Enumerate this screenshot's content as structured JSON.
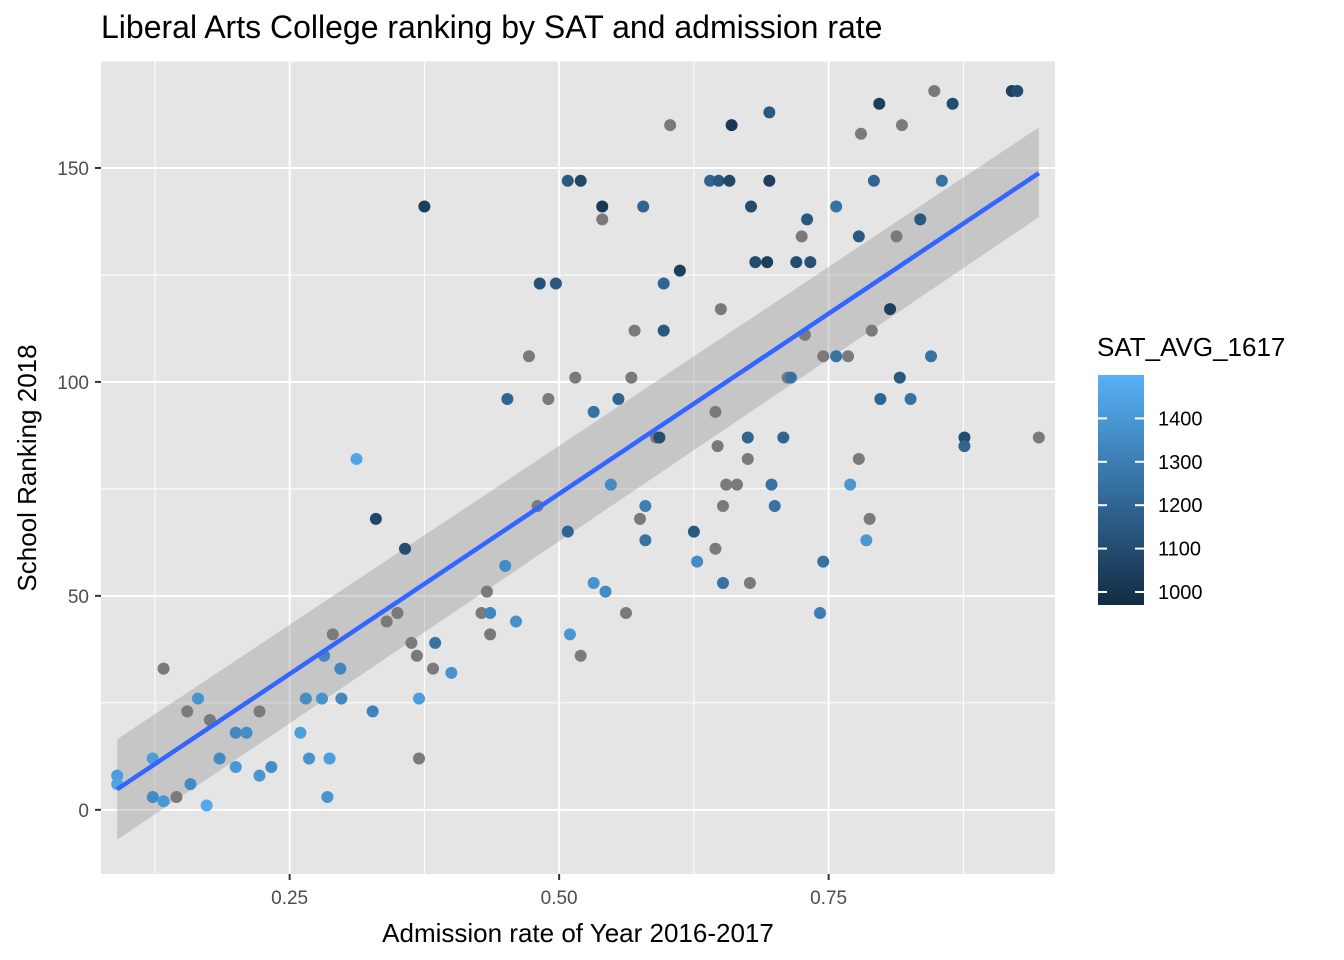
{
  "chart_data": {
    "type": "scatter",
    "title": "Liberal Arts College ranking by SAT and admission rate",
    "xlabel": "Admission rate of Year 2016-2017",
    "ylabel": "School Ranking 2018",
    "xlim": [
      0.075,
      0.96
    ],
    "ylim": [
      -15,
      175
    ],
    "x_ticks": [
      0.25,
      0.5,
      0.75
    ],
    "x_tick_labels": [
      "0.25",
      "0.50",
      "0.75"
    ],
    "y_ticks": [
      0,
      50,
      100,
      150
    ],
    "y_tick_labels": [
      "0",
      "50",
      "100",
      "150"
    ],
    "grid": true,
    "panel_background": "#e5e5e5",
    "grid_color": "#ffffff",
    "na_color": "#7a7a7a",
    "legend": {
      "title": "SAT_AVG_1617",
      "position": "right",
      "ticks": [
        1400,
        1300,
        1200,
        1100,
        1000
      ],
      "tick_labels": [
        "1400",
        "1300",
        "1200",
        "1100",
        "1000"
      ],
      "min": 970,
      "max": 1500,
      "color_low": "#132b43",
      "color_high": "#56b1f7"
    },
    "regression": {
      "method": "lm",
      "line_color": "#3366ff",
      "band_color": "#999999",
      "x_range": [
        0.09,
        0.945
      ],
      "fit": [
        4.8,
        148.8
      ],
      "ci_low": [
        -7,
        138.5
      ],
      "ci_high": [
        16.5,
        159.5
      ]
    },
    "points": [
      {
        "x": 0.09,
        "y": 8,
        "sat": 1420
      },
      {
        "x": 0.09,
        "y": 6,
        "sat": 1450
      },
      {
        "x": 0.123,
        "y": 12,
        "sat": 1420
      },
      {
        "x": 0.123,
        "y": 3,
        "sat": 1350
      },
      {
        "x": 0.133,
        "y": 2,
        "sat": 1400
      },
      {
        "x": 0.133,
        "y": 33,
        "sat": null
      },
      {
        "x": 0.145,
        "y": 3,
        "sat": null
      },
      {
        "x": 0.155,
        "y": 23,
        "sat": null
      },
      {
        "x": 0.158,
        "y": 6,
        "sat": 1350
      },
      {
        "x": 0.165,
        "y": 26,
        "sat": 1380
      },
      {
        "x": 0.173,
        "y": 1,
        "sat": 1470
      },
      {
        "x": 0.176,
        "y": 21,
        "sat": null
      },
      {
        "x": 0.185,
        "y": 12,
        "sat": 1350
      },
      {
        "x": 0.2,
        "y": 18,
        "sat": 1340
      },
      {
        "x": 0.2,
        "y": 10,
        "sat": 1400
      },
      {
        "x": 0.21,
        "y": 18,
        "sat": 1360
      },
      {
        "x": 0.222,
        "y": 23,
        "sat": null
      },
      {
        "x": 0.222,
        "y": 8,
        "sat": 1390
      },
      {
        "x": 0.233,
        "y": 10,
        "sat": 1360
      },
      {
        "x": 0.26,
        "y": 18,
        "sat": 1420
      },
      {
        "x": 0.265,
        "y": 26,
        "sat": 1360
      },
      {
        "x": 0.268,
        "y": 12,
        "sat": 1380
      },
      {
        "x": 0.28,
        "y": 26,
        "sat": 1380
      },
      {
        "x": 0.282,
        "y": 36,
        "sat": 1330
      },
      {
        "x": 0.285,
        "y": 3,
        "sat": 1390
      },
      {
        "x": 0.287,
        "y": 12,
        "sat": 1420
      },
      {
        "x": 0.29,
        "y": 41,
        "sat": null
      },
      {
        "x": 0.297,
        "y": 33,
        "sat": 1330
      },
      {
        "x": 0.298,
        "y": 26,
        "sat": 1340
      },
      {
        "x": 0.312,
        "y": 82,
        "sat": 1450
      },
      {
        "x": 0.327,
        "y": 23,
        "sat": 1320
      },
      {
        "x": 0.33,
        "y": 68,
        "sat": 1080
      },
      {
        "x": 0.34,
        "y": 44,
        "sat": null
      },
      {
        "x": 0.35,
        "y": 46,
        "sat": null
      },
      {
        "x": 0.357,
        "y": 61,
        "sat": 1100
      },
      {
        "x": 0.363,
        "y": 39,
        "sat": null
      },
      {
        "x": 0.368,
        "y": 36,
        "sat": null
      },
      {
        "x": 0.37,
        "y": 12,
        "sat": null
      },
      {
        "x": 0.37,
        "y": 26,
        "sat": 1420
      },
      {
        "x": 0.375,
        "y": 141,
        "sat": 1050
      },
      {
        "x": 0.383,
        "y": 33,
        "sat": null
      },
      {
        "x": 0.385,
        "y": 39,
        "sat": 1250
      },
      {
        "x": 0.4,
        "y": 32,
        "sat": 1380
      },
      {
        "x": 0.428,
        "y": 46,
        "sat": null
      },
      {
        "x": 0.433,
        "y": 51,
        "sat": null
      },
      {
        "x": 0.436,
        "y": 46,
        "sat": 1330
      },
      {
        "x": 0.436,
        "y": 41,
        "sat": null
      },
      {
        "x": 0.45,
        "y": 57,
        "sat": 1350
      },
      {
        "x": 0.452,
        "y": 96,
        "sat": 1200
      },
      {
        "x": 0.46,
        "y": 44,
        "sat": 1370
      },
      {
        "x": 0.472,
        "y": 106,
        "sat": null
      },
      {
        "x": 0.48,
        "y": 71,
        "sat": null
      },
      {
        "x": 0.482,
        "y": 123,
        "sat": 1120
      },
      {
        "x": 0.49,
        "y": 96,
        "sat": null
      },
      {
        "x": 0.497,
        "y": 123,
        "sat": 1150
      },
      {
        "x": 0.508,
        "y": 147,
        "sat": 1150
      },
      {
        "x": 0.508,
        "y": 65,
        "sat": 1200
      },
      {
        "x": 0.51,
        "y": 41,
        "sat": 1400
      },
      {
        "x": 0.515,
        "y": 101,
        "sat": null
      },
      {
        "x": 0.52,
        "y": 147,
        "sat": 1080
      },
      {
        "x": 0.52,
        "y": 36,
        "sat": null
      },
      {
        "x": 0.532,
        "y": 93,
        "sat": 1250
      },
      {
        "x": 0.532,
        "y": 53,
        "sat": 1380
      },
      {
        "x": 0.54,
        "y": 141,
        "sat": 1020
      },
      {
        "x": 0.54,
        "y": 138,
        "sat": null
      },
      {
        "x": 0.543,
        "y": 51,
        "sat": 1350
      },
      {
        "x": 0.548,
        "y": 76,
        "sat": 1350
      },
      {
        "x": 0.555,
        "y": 96,
        "sat": 1200
      },
      {
        "x": 0.562,
        "y": 46,
        "sat": null
      },
      {
        "x": 0.567,
        "y": 101,
        "sat": null
      },
      {
        "x": 0.57,
        "y": 112,
        "sat": null
      },
      {
        "x": 0.575,
        "y": 68,
        "sat": null
      },
      {
        "x": 0.578,
        "y": 141,
        "sat": 1200
      },
      {
        "x": 0.58,
        "y": 71,
        "sat": 1300
      },
      {
        "x": 0.58,
        "y": 63,
        "sat": 1250
      },
      {
        "x": 0.59,
        "y": 87,
        "sat": null
      },
      {
        "x": 0.593,
        "y": 87,
        "sat": 1100
      },
      {
        "x": 0.597,
        "y": 123,
        "sat": 1200
      },
      {
        "x": 0.597,
        "y": 112,
        "sat": 1150
      },
      {
        "x": 0.603,
        "y": 160,
        "sat": null
      },
      {
        "x": 0.612,
        "y": 126,
        "sat": 1050
      },
      {
        "x": 0.625,
        "y": 65,
        "sat": 1150
      },
      {
        "x": 0.628,
        "y": 58,
        "sat": 1350
      },
      {
        "x": 0.64,
        "y": 147,
        "sat": 1200
      },
      {
        "x": 0.645,
        "y": 61,
        "sat": null
      },
      {
        "x": 0.645,
        "y": 93,
        "sat": null
      },
      {
        "x": 0.647,
        "y": 85,
        "sat": null
      },
      {
        "x": 0.648,
        "y": 147,
        "sat": 1150
      },
      {
        "x": 0.65,
        "y": 117,
        "sat": null
      },
      {
        "x": 0.652,
        "y": 71,
        "sat": null
      },
      {
        "x": 0.652,
        "y": 53,
        "sat": 1250
      },
      {
        "x": 0.655,
        "y": 76,
        "sat": null
      },
      {
        "x": 0.658,
        "y": 147,
        "sat": 1080
      },
      {
        "x": 0.66,
        "y": 160,
        "sat": 1020
      },
      {
        "x": 0.665,
        "y": 76,
        "sat": null
      },
      {
        "x": 0.675,
        "y": 82,
        "sat": null
      },
      {
        "x": 0.675,
        "y": 87,
        "sat": 1200
      },
      {
        "x": 0.677,
        "y": 53,
        "sat": null
      },
      {
        "x": 0.678,
        "y": 141,
        "sat": 1100
      },
      {
        "x": 0.682,
        "y": 128,
        "sat": 1100
      },
      {
        "x": 0.693,
        "y": 128,
        "sat": 1050
      },
      {
        "x": 0.695,
        "y": 147,
        "sat": 1050
      },
      {
        "x": 0.695,
        "y": 163,
        "sat": 1150
      },
      {
        "x": 0.697,
        "y": 76,
        "sat": 1250
      },
      {
        "x": 0.7,
        "y": 71,
        "sat": 1250
      },
      {
        "x": 0.708,
        "y": 87,
        "sat": 1200
      },
      {
        "x": 0.712,
        "y": 101,
        "sat": null
      },
      {
        "x": 0.715,
        "y": 101,
        "sat": 1250
      },
      {
        "x": 0.72,
        "y": 128,
        "sat": 1100
      },
      {
        "x": 0.725,
        "y": 134,
        "sat": null
      },
      {
        "x": 0.728,
        "y": 111,
        "sat": null
      },
      {
        "x": 0.73,
        "y": 138,
        "sat": 1150
      },
      {
        "x": 0.733,
        "y": 128,
        "sat": 1120
      },
      {
        "x": 0.742,
        "y": 46,
        "sat": 1300
      },
      {
        "x": 0.745,
        "y": 106,
        "sat": null
      },
      {
        "x": 0.745,
        "y": 58,
        "sat": 1250
      },
      {
        "x": 0.757,
        "y": 106,
        "sat": 1250
      },
      {
        "x": 0.757,
        "y": 141,
        "sat": 1250
      },
      {
        "x": 0.768,
        "y": 106,
        "sat": null
      },
      {
        "x": 0.77,
        "y": 76,
        "sat": 1400
      },
      {
        "x": 0.778,
        "y": 134,
        "sat": 1150
      },
      {
        "x": 0.778,
        "y": 82,
        "sat": null
      },
      {
        "x": 0.78,
        "y": 158,
        "sat": null
      },
      {
        "x": 0.785,
        "y": 63,
        "sat": 1400
      },
      {
        "x": 0.788,
        "y": 68,
        "sat": null
      },
      {
        "x": 0.79,
        "y": 112,
        "sat": null
      },
      {
        "x": 0.792,
        "y": 147,
        "sat": 1200
      },
      {
        "x": 0.797,
        "y": 165,
        "sat": 1050
      },
      {
        "x": 0.798,
        "y": 96,
        "sat": 1200
      },
      {
        "x": 0.807,
        "y": 117,
        "sat": 1050
      },
      {
        "x": 0.813,
        "y": 134,
        "sat": null
      },
      {
        "x": 0.816,
        "y": 101,
        "sat": 1150
      },
      {
        "x": 0.818,
        "y": 160,
        "sat": null
      },
      {
        "x": 0.826,
        "y": 96,
        "sat": 1250
      },
      {
        "x": 0.835,
        "y": 138,
        "sat": 1150
      },
      {
        "x": 0.845,
        "y": 106,
        "sat": 1250
      },
      {
        "x": 0.848,
        "y": 168,
        "sat": null
      },
      {
        "x": 0.855,
        "y": 147,
        "sat": 1250
      },
      {
        "x": 0.865,
        "y": 165,
        "sat": 1100
      },
      {
        "x": 0.876,
        "y": 87,
        "sat": 1100
      },
      {
        "x": 0.876,
        "y": 85,
        "sat": 1200
      },
      {
        "x": 0.92,
        "y": 168,
        "sat": 1050
      },
      {
        "x": 0.925,
        "y": 168,
        "sat": 1100
      },
      {
        "x": 0.945,
        "y": 87,
        "sat": null
      }
    ]
  }
}
